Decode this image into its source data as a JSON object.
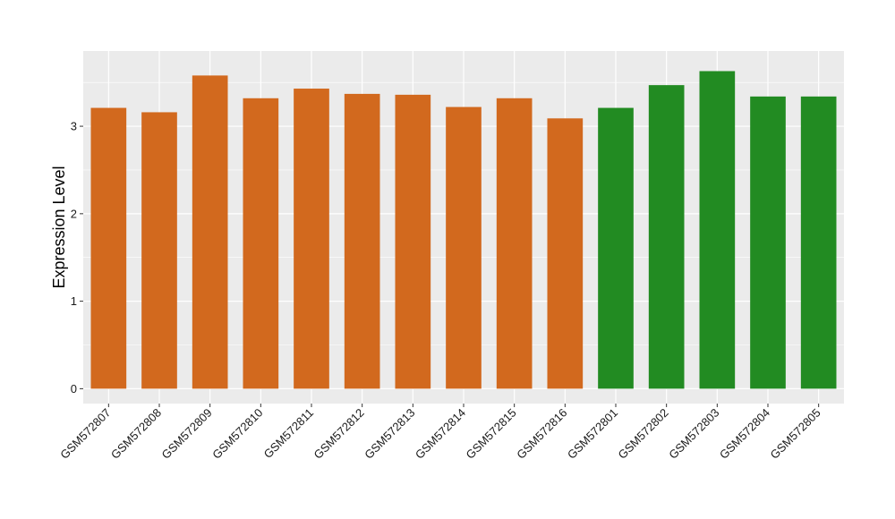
{
  "chart_data": {
    "type": "bar",
    "title": "",
    "xlabel": "",
    "ylabel": "Expression Level",
    "ylim": [
      -0.17,
      3.86
    ],
    "yticks": [
      0,
      1,
      2,
      3
    ],
    "grid": true,
    "legend": "none",
    "categories": [
      "GSM572807",
      "GSM572808",
      "GSM572809",
      "GSM572810",
      "GSM572811",
      "GSM572812",
      "GSM572813",
      "GSM572814",
      "GSM572815",
      "GSM572816",
      "GSM572801",
      "GSM572802",
      "GSM572803",
      "GSM572804",
      "GSM572805"
    ],
    "values": [
      3.21,
      3.16,
      3.58,
      3.32,
      3.43,
      3.37,
      3.36,
      3.22,
      3.32,
      3.09,
      3.21,
      3.47,
      3.63,
      3.34,
      3.34
    ],
    "bar_colors": [
      "#d2691e",
      "#d2691e",
      "#d2691e",
      "#d2691e",
      "#d2691e",
      "#d2691e",
      "#d2691e",
      "#d2691e",
      "#d2691e",
      "#d2691e",
      "#228b22",
      "#228b22",
      "#228b22",
      "#228b22",
      "#228b22"
    ],
    "panel_background": "#ebebeb",
    "grid_color": "#ffffff"
  }
}
